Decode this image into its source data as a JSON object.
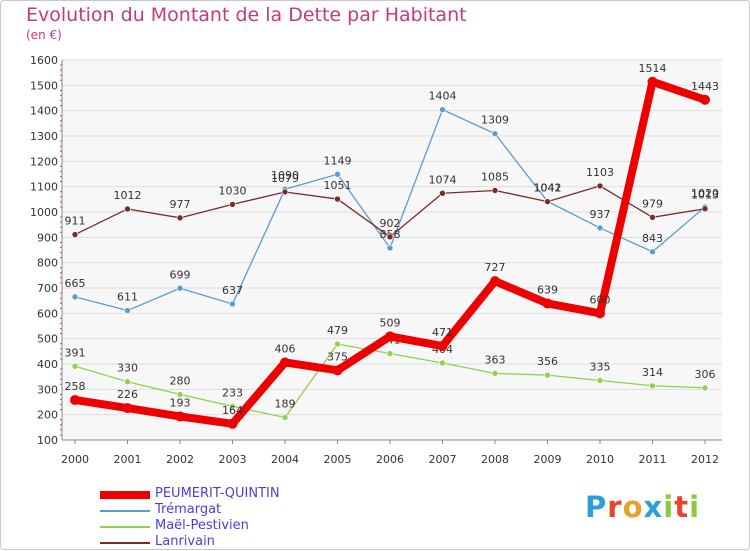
{
  "title": "Evolution du Montant de la Dette par Habitant",
  "subtitle": "(en €)",
  "logo": {
    "letters": [
      "P",
      "r",
      "o",
      "x",
      "i",
      "t",
      "i"
    ],
    "colors": [
      "#2a9fd8",
      "#e8462a",
      "#e8a12a",
      "#2a9fd8",
      "#8fc83a",
      "#e8462a",
      "#8fc83a"
    ]
  },
  "chart_data": {
    "type": "line",
    "title": "Evolution du Montant de la Dette par Habitant",
    "ylabel": "(en €)",
    "xlabel": "",
    "categories": [
      "2000",
      "2001",
      "2002",
      "2003",
      "2004",
      "2005",
      "2006",
      "2007",
      "2008",
      "2009",
      "2010",
      "2011",
      "2012"
    ],
    "ylim": [
      100,
      1600
    ],
    "yticks": [
      100,
      200,
      300,
      400,
      500,
      600,
      700,
      800,
      900,
      1000,
      1100,
      1200,
      1300,
      1400,
      1500,
      1600
    ],
    "grid": "horizontal",
    "legend_position": "bottom-left",
    "series": [
      {
        "name": "PEUMERIT-QUINTIN",
        "color": "#ee0000",
        "width": 8,
        "values": [
          258,
          226,
          193,
          164,
          406,
          375,
          509,
          471,
          727,
          639,
          600,
          1514,
          1443
        ]
      },
      {
        "name": "Trémargat",
        "color": "#5b9bd5",
        "width": 1.3,
        "values": [
          665,
          611,
          699,
          637,
          1090,
          1149,
          858,
          1404,
          1309,
          1042,
          937,
          843,
          1020
        ]
      },
      {
        "name": "Maël-Pestivien",
        "color": "#92d050",
        "width": 1.3,
        "values": [
          391,
          330,
          280,
          233,
          189,
          479,
          441,
          404,
          363,
          356,
          335,
          314,
          306
        ]
      },
      {
        "name": "Lanrivain",
        "color": "#7b2a2a",
        "width": 1.3,
        "values": [
          911,
          1012,
          977,
          1030,
          1079,
          1051,
          902,
          1074,
          1085,
          1041,
          1103,
          979,
          1013
        ]
      }
    ]
  }
}
